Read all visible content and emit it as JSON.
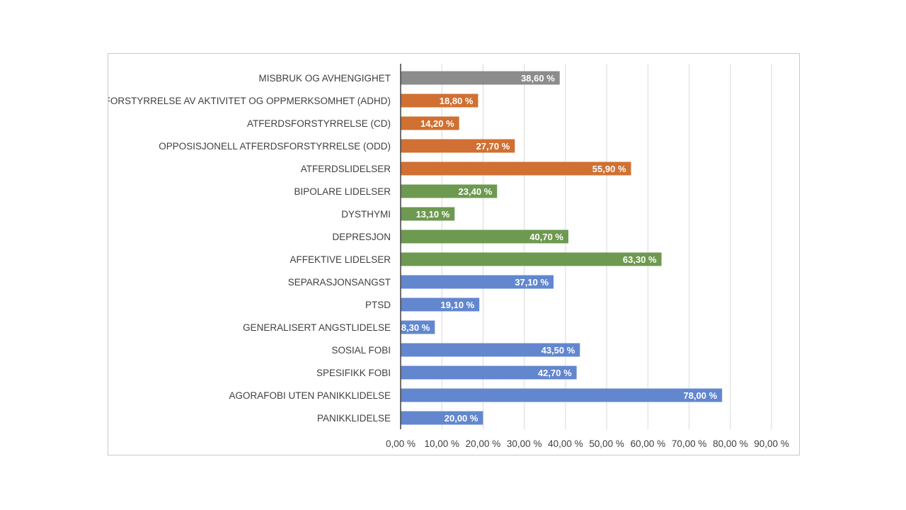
{
  "chart_data": {
    "type": "bar",
    "orientation": "horizontal",
    "title": "",
    "xlabel": "",
    "ylabel": "",
    "xlim": [
      0,
      90
    ],
    "grid": "vertical",
    "legend": "none",
    "colors": {
      "misbruk": "#8c8c8c",
      "atferd": "#d07032",
      "affektive": "#6e9950",
      "angst": "#6287cf"
    },
    "ticks": [
      "0,00 %",
      "10,00 %",
      "20,00 %",
      "30,00 %",
      "40,00 %",
      "50,00 %",
      "60,00 %",
      "70,00 %",
      "80,00 %",
      "90,00 %"
    ],
    "bars": [
      {
        "label": "MISBRUK OG AVHENGIGHET",
        "value": 38.6,
        "text": "38,60 %",
        "group": "misbruk"
      },
      {
        "label": "FORSTYRRELSE AV AKTIVITET OG OPPMERKSOMHET (ADHD)",
        "value": 18.8,
        "text": "18,80 %",
        "group": "atferd"
      },
      {
        "label": "ATFERDSFORSTYRRELSE (CD)",
        "value": 14.2,
        "text": "14,20 %",
        "group": "atferd"
      },
      {
        "label": "OPPOSISJONELL ATFERDSFORSTYRRELSE (ODD)",
        "value": 27.7,
        "text": "27,70 %",
        "group": "atferd"
      },
      {
        "label": "ATFERDSLIDELSER",
        "value": 55.9,
        "text": "55,90 %",
        "group": "atferd"
      },
      {
        "label": "BIPOLARE LIDELSER",
        "value": 23.4,
        "text": "23,40 %",
        "group": "affektive"
      },
      {
        "label": "DYSTHYMI",
        "value": 13.1,
        "text": "13,10 %",
        "group": "affektive"
      },
      {
        "label": "DEPRESJON",
        "value": 40.7,
        "text": "40,70 %",
        "group": "affektive"
      },
      {
        "label": "AFFEKTIVE LIDELSER",
        "value": 63.3,
        "text": "63,30 %",
        "group": "affektive"
      },
      {
        "label": "SEPARASJONSANGST",
        "value": 37.1,
        "text": "37,10 %",
        "group": "angst"
      },
      {
        "label": "PTSD",
        "value": 19.1,
        "text": "19,10 %",
        "group": "angst"
      },
      {
        "label": "GENERALISERT ANGSTLIDELSE",
        "value": 8.3,
        "text": "8,30 %",
        "group": "angst"
      },
      {
        "label": "SOSIAL FOBI",
        "value": 43.5,
        "text": "43,50 %",
        "group": "angst"
      },
      {
        "label": "SPESIFIKK FOBI",
        "value": 42.7,
        "text": "42,70 %",
        "group": "angst"
      },
      {
        "label": "AGORAFOBI UTEN PANIKKLIDELSE",
        "value": 78.0,
        "text": "78,00 %",
        "group": "angst"
      },
      {
        "label": "PANIKKLIDELSE",
        "value": 20.0,
        "text": "20,00 %",
        "group": "angst"
      }
    ]
  }
}
